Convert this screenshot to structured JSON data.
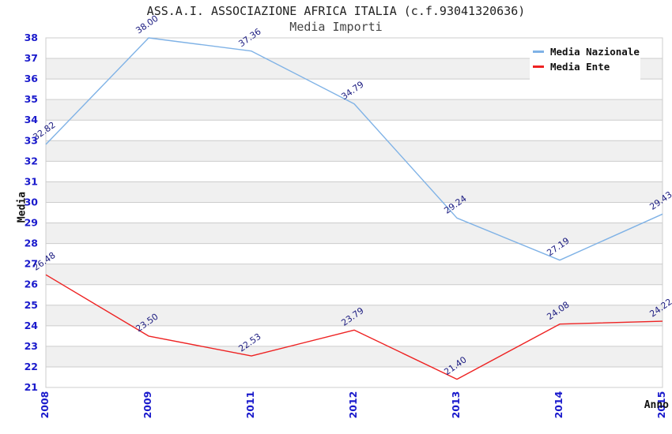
{
  "title": "ASS.A.I. ASSOCIAZIONE AFRICA ITALIA (c.f.93041320636)",
  "subtitle": "Media Importi",
  "chart_data": {
    "type": "line",
    "categories": [
      "2008",
      "2009",
      "2011",
      "2012",
      "2013",
      "2014",
      "2015"
    ],
    "series": [
      {
        "name": "Media Nazionale",
        "color": "#7fb2e6",
        "values": [
          32.82,
          38.0,
          37.36,
          34.79,
          29.24,
          27.19,
          29.43
        ]
      },
      {
        "name": "Media Ente",
        "color": "#ee2222",
        "values": [
          26.48,
          23.5,
          22.53,
          23.79,
          21.4,
          24.08,
          24.22
        ]
      }
    ],
    "xlabel": "Anno",
    "ylabel": "Media",
    "ylim": [
      21,
      38
    ],
    "ytick_step": 1,
    "grid": true,
    "band_fill": true,
    "legend_position": "top-right",
    "data_labels": true,
    "colors": {
      "tick_label": "#1a1acc",
      "data_label": "#1b1b80",
      "grid_line": "#cccccc",
      "band": "#f0f0f0",
      "plot_border": "#cccccc"
    }
  }
}
